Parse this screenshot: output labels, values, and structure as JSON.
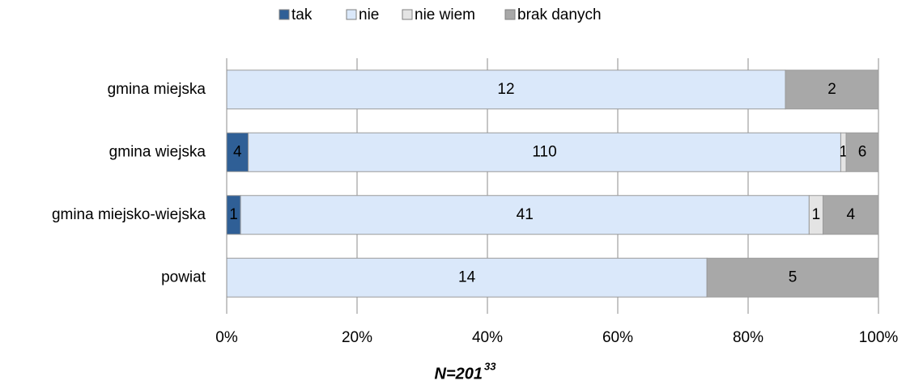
{
  "chart_data": {
    "type": "bar",
    "orientation": "horizontal",
    "stacked": "percent",
    "categories": [
      "gmina miejska",
      "gmina wiejska",
      "gmina miejsko-wiejska",
      "powiat"
    ],
    "series": [
      {
        "name": "tak",
        "color": "#2f5f96",
        "values": [
          0,
          4,
          1,
          0
        ]
      },
      {
        "name": "nie",
        "color": "#dae8fa",
        "values": [
          12,
          110,
          41,
          14
        ]
      },
      {
        "name": "nie wiem",
        "color": "#e4e4e4",
        "values": [
          0,
          1,
          1,
          0
        ]
      },
      {
        "name": "brak danych",
        "color": "#a8a8a8",
        "values": [
          2,
          6,
          4,
          5
        ]
      }
    ],
    "xlim": [
      0,
      100
    ],
    "xticks": [
      {
        "value": 0,
        "label": "0%"
      },
      {
        "value": 20,
        "label": "20%"
      },
      {
        "value": 40,
        "label": "40%"
      },
      {
        "value": 60,
        "label": "60%"
      },
      {
        "value": 80,
        "label": "80%"
      },
      {
        "value": 100,
        "label": "100%"
      }
    ],
    "grid": true,
    "legend": "top",
    "footnote": "N=201",
    "footnote_superscript": "33"
  }
}
